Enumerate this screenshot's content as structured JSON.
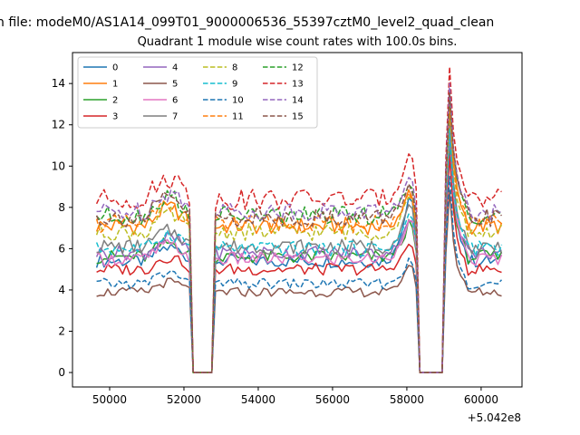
{
  "figure": {
    "suptitle": "n file: modeM0/AS1A14_099T01_9000006536_55397cztM0_level2_quad_clean"
  },
  "chart_data": {
    "type": "line",
    "title": "Quadrant 1 module wise count rates with 100.0s bins.",
    "xlabel": "",
    "ylabel": "",
    "x_offset_label": "+5.042e8",
    "xlim": [
      49000,
      61100
    ],
    "ylim": [
      -0.7,
      15.5
    ],
    "xticks": [
      50000,
      52000,
      54000,
      56000,
      58000,
      60000
    ],
    "xtick_labels": [
      "50000",
      "52000",
      "54000",
      "56000",
      "58000",
      "60000"
    ],
    "yticks": [
      0,
      2,
      4,
      6,
      8,
      10,
      12,
      14
    ],
    "ytick_labels": [
      "0",
      "2",
      "4",
      "6",
      "8",
      "10",
      "12",
      "14"
    ],
    "grid": false,
    "legend": {
      "placement": "top-left",
      "columns": 4
    },
    "data_window": {
      "x_start": 49650,
      "x_end": 60600,
      "bin": 100
    },
    "gaps": [
      {
        "drop_start": 52250,
        "drop_end": 52750,
        "low_value": 0.0
      },
      {
        "drop_start": 58350,
        "drop_end": 58950,
        "low_value": 0.0
      }
    ],
    "flare": {
      "start_x": 57400,
      "peak_x": 58100,
      "end_x": 58300
    },
    "spike": {
      "peak_x": 59150,
      "decay_end_x": 59600
    },
    "series": [
      {
        "name": "0",
        "color": "#1f77b4",
        "style": "solid",
        "base": 5.4,
        "peak": 9.2,
        "spike": 12.6
      },
      {
        "name": "1",
        "color": "#ff7f0e",
        "style": "solid",
        "base": 7.1,
        "peak": 9.0,
        "spike": 13.2
      },
      {
        "name": "2",
        "color": "#2ca02c",
        "style": "solid",
        "base": 5.6,
        "peak": 7.5,
        "spike": 11.0
      },
      {
        "name": "3",
        "color": "#d62728",
        "style": "solid",
        "base": 5.0,
        "peak": 6.5,
        "spike": 10.5
      },
      {
        "name": "4",
        "color": "#9467bd",
        "style": "solid",
        "base": 5.8,
        "peak": 7.8,
        "spike": 11.5
      },
      {
        "name": "5",
        "color": "#8c564b",
        "style": "solid",
        "base": 3.9,
        "peak": 5.5,
        "spike": 8.8
      },
      {
        "name": "6",
        "color": "#e377c2",
        "style": "solid",
        "base": 5.5,
        "peak": 7.9,
        "spike": 12.0
      },
      {
        "name": "7",
        "color": "#7f7f7f",
        "style": "solid",
        "base": 6.1,
        "peak": 8.5,
        "spike": 12.2
      },
      {
        "name": "8",
        "color": "#bcbd22",
        "style": "dashed",
        "base": 6.8,
        "peak": 9.0,
        "spike": 12.8
      },
      {
        "name": "9",
        "color": "#17becf",
        "style": "dashed",
        "base": 6.0,
        "peak": 8.0,
        "spike": 11.8
      },
      {
        "name": "10",
        "color": "#1f77b4",
        "style": "dashed",
        "base": 4.3,
        "peak": 5.6,
        "spike": 9.5
      },
      {
        "name": "11",
        "color": "#ff7f0e",
        "style": "dashed",
        "base": 7.2,
        "peak": 8.7,
        "spike": 13.0
      },
      {
        "name": "12",
        "color": "#2ca02c",
        "style": "dashed",
        "base": 7.6,
        "peak": 9.6,
        "spike": 13.5
      },
      {
        "name": "13",
        "color": "#d62728",
        "style": "dashed",
        "base": 8.4,
        "peak": 11.3,
        "spike": 14.8
      },
      {
        "name": "14",
        "color": "#9467bd",
        "style": "dashed",
        "base": 7.8,
        "peak": 9.8,
        "spike": 14.0
      },
      {
        "name": "15",
        "color": "#8c564b",
        "style": "dashed",
        "base": 7.5,
        "peak": 9.4,
        "spike": 13.6
      }
    ]
  }
}
